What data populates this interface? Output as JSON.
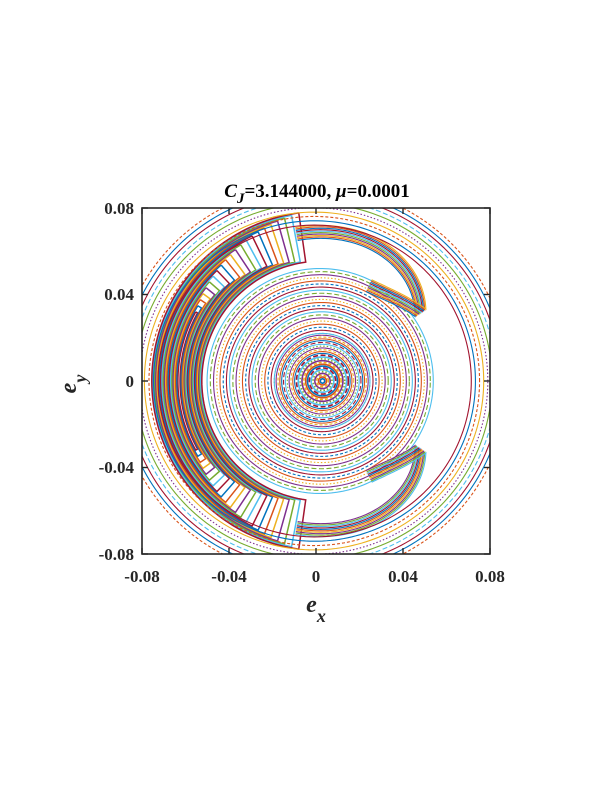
{
  "chart_data": {
    "type": "scatter",
    "title": {
      "symbol": "C",
      "subscript": "J",
      "value_text": "=3.144000, ",
      "mu_symbol": "μ",
      "mu_text": "=0.0001"
    },
    "xlabel": {
      "symbol": "e",
      "subscript": "x"
    },
    "ylabel": {
      "symbol": "e",
      "subscript": "y"
    },
    "xlim": [
      -0.08,
      0.08
    ],
    "ylim": [
      -0.08,
      0.08
    ],
    "xticks": [
      {
        "value": -0.08,
        "label": "-0.08"
      },
      {
        "value": -0.04,
        "label": "-0.04"
      },
      {
        "value": 0,
        "label": "0"
      },
      {
        "value": 0.04,
        "label": "0.04"
      },
      {
        "value": 0.08,
        "label": "0.08"
      }
    ],
    "yticks": [
      {
        "value": -0.08,
        "label": "-0.08"
      },
      {
        "value": -0.04,
        "label": "-0.04"
      },
      {
        "value": 0,
        "label": "0"
      },
      {
        "value": 0.04,
        "label": "0.04"
      },
      {
        "value": 0.08,
        "label": "0.08"
      }
    ],
    "grid": false,
    "legend": false,
    "colors": [
      "#0072BD",
      "#D95319",
      "#EDB120",
      "#7E2F8E",
      "#77AC30",
      "#4DBEEE",
      "#A2142F"
    ],
    "center": {
      "ex": 0.003,
      "ey": 0.0
    },
    "series": [
      {
        "kind": "circulating_invariant_curves",
        "ecc_min": 0.001,
        "ecc_max": 0.022,
        "count": 26
      },
      {
        "kind": "circulating_invariant_curves",
        "ecc_min": 0.022,
        "ecc_max": 0.052,
        "count": 22
      },
      {
        "kind": "resonance_island_band",
        "ecc_inner": 0.055,
        "ecc_outer": 0.081,
        "phase_center_deg": 180,
        "half_width_deg": 82,
        "count": 22
      },
      {
        "kind": "separatrix_lobes",
        "ecc": 0.066,
        "lobe_tips_deg": [
          35,
          -35
        ],
        "count": 10
      },
      {
        "kind": "outer_circulating_curves",
        "ecc_min": 0.072,
        "ecc_max": 0.09,
        "count": 10
      }
    ]
  }
}
